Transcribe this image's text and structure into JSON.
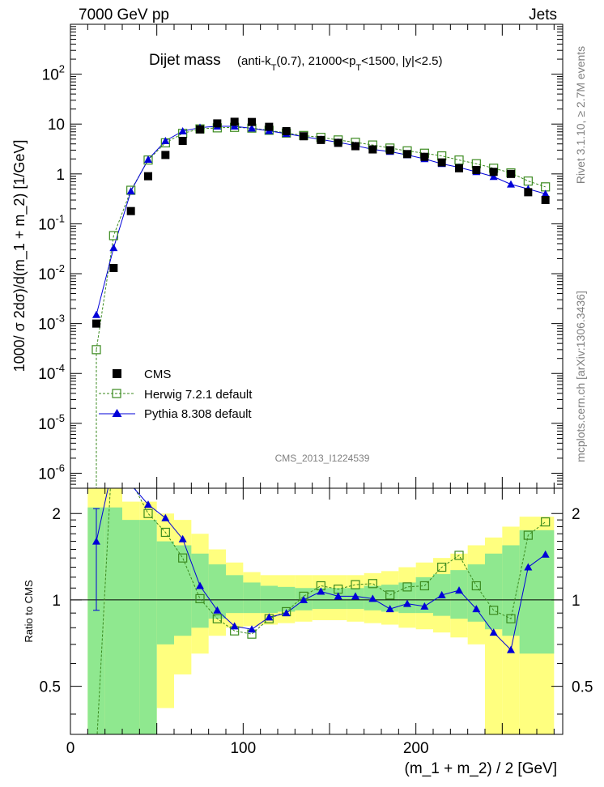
{
  "header": {
    "left": "7000 GeV pp",
    "right": "Jets"
  },
  "title_main": "Dijet mass",
  "title_sub": {
    "p1": "(anti-k",
    "s1": "T",
    "p2": "(0.7), 21000<p",
    "s2": "T",
    "p3": "<1500, |y|<2.5)"
  },
  "ylabel": "1000/ σ 2dσ)/d(m_1 + m_2) [1/GeV]",
  "xlabel": "(m_1 + m_2) / 2 [GeV]",
  "ratio_ylabel": "Ratio to CMS",
  "watermark": "CMS_2013_I1224539",
  "side_top": "Rivet 3.1.10, ≥ 2.7M events",
  "side_bottom": "mcplots.cern.ch [arXiv:1306.3436]",
  "legend": [
    "CMS",
    "Herwig 7.2.1 default",
    "Pythia 8.308 default"
  ],
  "colors": {
    "cms": "#000000",
    "herwig": "#3b8a1f",
    "pythia": "#0000d8",
    "band1": "#8fe88f",
    "band2": "#ffff7f"
  },
  "chart_data": [
    {
      "type": "scatter",
      "panel": "main",
      "xlim": [
        0,
        285
      ],
      "ylim": [
        5e-07,
        1000
      ],
      "yscale": "log",
      "ytick_values": [
        1e-06,
        1e-05,
        0.0001,
        0.001,
        0.01,
        0.1,
        1,
        10,
        100
      ],
      "ytick_labels": [
        {
          "b": "10",
          "e": "-6"
        },
        {
          "b": "10",
          "e": "-5"
        },
        {
          "b": "10",
          "e": "-4"
        },
        {
          "b": "10",
          "e": "-3"
        },
        {
          "b": "10",
          "e": "-2"
        },
        {
          "b": "10",
          "e": "-1"
        },
        {
          "b": "1",
          "e": ""
        },
        {
          "b": "10",
          "e": ""
        },
        {
          "b": "10",
          "e": "2"
        }
      ],
      "x": [
        15,
        25,
        35,
        45,
        55,
        65,
        75,
        85,
        95,
        105,
        115,
        125,
        135,
        145,
        155,
        165,
        175,
        185,
        195,
        205,
        215,
        225,
        235,
        245,
        255,
        265,
        275
      ],
      "series": [
        {
          "name": "CMS",
          "values": [
            0.001,
            0.013,
            0.18,
            0.9,
            2.4,
            4.6,
            7.8,
            10.3,
            11.1,
            11.0,
            8.8,
            7.2,
            5.7,
            4.8,
            4.2,
            3.6,
            3.1,
            3.0,
            2.5,
            2.2,
            1.7,
            1.3,
            1.2,
            1.1,
            1.0,
            0.43,
            0.3
          ]
        },
        {
          "name": "Herwig 7.2.1 default",
          "values": [
            0.0003,
            0.058,
            0.47,
            1.9,
            4.2,
            6.5,
            8.0,
            8.4,
            8.6,
            8.3,
            7.5,
            6.6,
            5.9,
            5.4,
            4.8,
            4.3,
            3.8,
            3.3,
            2.9,
            2.6,
            2.3,
            1.9,
            1.6,
            1.3,
            1.05,
            0.72,
            0.55
          ]
        },
        {
          "name": "Pythia 8.308 default",
          "values": [
            0.0015,
            0.033,
            0.45,
            1.95,
            4.6,
            7.2,
            8.5,
            9.0,
            9.0,
            8.2,
            7.3,
            6.4,
            5.6,
            4.9,
            4.3,
            3.7,
            3.1,
            2.8,
            2.4,
            2.0,
            1.6,
            1.35,
            1.1,
            0.88,
            0.62,
            0.5,
            0.4
          ]
        }
      ]
    },
    {
      "type": "line",
      "panel": "ratio",
      "xlim": [
        0,
        285
      ],
      "ylim": [
        0.34,
        2.45
      ],
      "yscale": "log",
      "ytick_values": [
        0.5,
        1,
        2
      ],
      "ytick_labels": [
        "0.5",
        "1",
        "2"
      ],
      "xtick_values": [
        0,
        100,
        200
      ],
      "xtick_labels": [
        "0",
        "100",
        "200"
      ],
      "x": [
        15,
        25,
        35,
        45,
        55,
        65,
        75,
        85,
        95,
        105,
        115,
        125,
        135,
        145,
        155,
        165,
        175,
        185,
        195,
        205,
        215,
        225,
        235,
        245,
        255,
        265,
        275
      ],
      "series": [
        {
          "name": "Herwig 7.2.1 default",
          "values": [
            0.3,
            4.5,
            2.6,
            2.0,
            1.72,
            1.4,
            1.01,
            0.86,
            0.78,
            0.76,
            0.86,
            0.91,
            1.03,
            1.12,
            1.09,
            1.13,
            1.14,
            1.04,
            1.11,
            1.12,
            1.3,
            1.43,
            1.12,
            0.92,
            0.86,
            1.68,
            1.87
          ]
        },
        {
          "name": "Pythia 8.308 default",
          "values": [
            1.6,
            3.0,
            2.52,
            2.15,
            1.93,
            1.63,
            1.12,
            0.92,
            0.81,
            0.79,
            0.87,
            0.9,
            1.0,
            1.07,
            1.03,
            1.03,
            1.01,
            0.93,
            0.97,
            0.95,
            1.04,
            1.08,
            0.93,
            0.77,
            0.67,
            1.3,
            1.44
          ]
        }
      ],
      "cms_ratio_point": {
        "x": 15,
        "value": 1.6,
        "err_low": 0.92,
        "err_high": 2.08
      },
      "bands": {
        "edges": [
          10,
          20,
          30,
          40,
          50,
          60,
          70,
          80,
          90,
          100,
          110,
          120,
          130,
          140,
          150,
          160,
          170,
          180,
          190,
          200,
          210,
          220,
          230,
          240,
          250,
          260,
          270,
          280
        ],
        "inner_lo": [
          0.3,
          0.3,
          0.3,
          0.3,
          0.7,
          0.75,
          0.8,
          0.86,
          0.9,
          0.9,
          0.9,
          0.91,
          0.92,
          0.93,
          0.93,
          0.93,
          0.92,
          0.91,
          0.9,
          0.9,
          0.88,
          0.86,
          0.84,
          0.79,
          0.75,
          0.65,
          0.65
        ],
        "inner_hi": [
          2.1,
          2.1,
          1.9,
          1.9,
          1.6,
          1.55,
          1.45,
          1.33,
          1.22,
          1.15,
          1.12,
          1.11,
          1.1,
          1.1,
          1.1,
          1.1,
          1.12,
          1.13,
          1.15,
          1.2,
          1.23,
          1.27,
          1.33,
          1.45,
          1.55,
          1.75,
          1.75
        ],
        "outer_lo": [
          0.3,
          0.3,
          0.3,
          0.3,
          0.3,
          0.3,
          0.3,
          0.3,
          0.3,
          0.3,
          0.3,
          0.3,
          0.3,
          0.3,
          0.3,
          0.3,
          0.3,
          0.3,
          0.3,
          0.3,
          0.3,
          0.3,
          0.3,
          0.3,
          0.3,
          0.3,
          0.3
        ],
        "outer_hi": [
          2.6,
          2.6,
          2.6,
          2.6,
          2.6,
          2.6,
          2.6,
          2.6,
          2.6,
          2.6,
          2.6,
          2.6,
          2.6,
          2.6,
          2.6,
          2.6,
          2.6,
          2.6,
          2.6,
          2.6,
          2.6,
          2.6,
          2.6,
          2.6,
          2.6,
          2.6,
          2.6
        ]
      }
    }
  ]
}
